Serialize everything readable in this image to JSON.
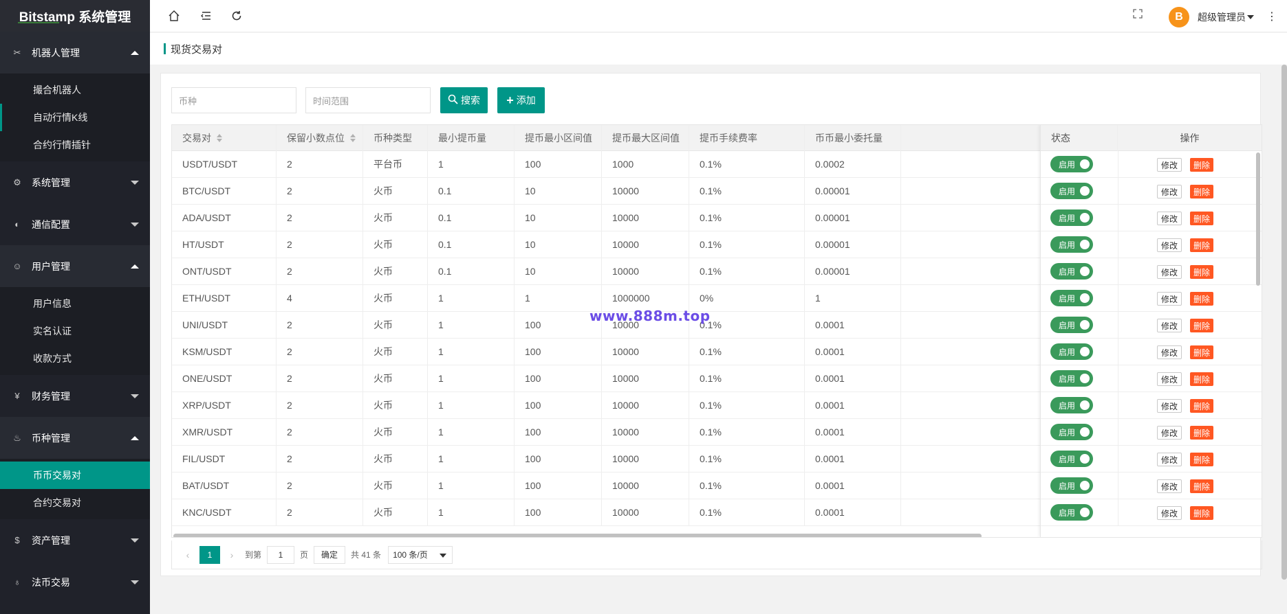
{
  "app": {
    "title": "Bitstamp 系统管理"
  },
  "sidebar": {
    "groups": [
      {
        "label": "机器人管理",
        "icon": "robot-icon",
        "open": true,
        "items": [
          {
            "label": "撮合机器人"
          },
          {
            "label": "自动行情K线"
          },
          {
            "label": "合约行情插针"
          }
        ]
      },
      {
        "label": "系统管理",
        "icon": "gear-icon",
        "open": false,
        "items": []
      },
      {
        "label": "通信配置",
        "icon": "config-icon",
        "open": false,
        "items": []
      },
      {
        "label": "用户管理",
        "icon": "user-icon",
        "open": true,
        "items": [
          {
            "label": "用户信息"
          },
          {
            "label": "实名认证"
          },
          {
            "label": "收款方式"
          }
        ]
      },
      {
        "label": "财务管理",
        "icon": "yen-icon",
        "open": false,
        "items": []
      },
      {
        "label": "币种管理",
        "icon": "coin-icon",
        "open": true,
        "items": [
          {
            "label": "币币交易对"
          },
          {
            "label": "合约交易对"
          }
        ]
      },
      {
        "label": "资产管理",
        "icon": "dollar-icon",
        "open": false,
        "items": []
      },
      {
        "label": "法币交易",
        "icon": "fire-icon",
        "open": false,
        "items": []
      }
    ]
  },
  "topbar": {
    "icons": [
      "home-icon",
      "menu-fold-icon",
      "refresh-icon",
      "fullscreen-icon",
      "more-icon"
    ],
    "user": {
      "name": "超级管理员",
      "avatar": "B"
    }
  },
  "page": {
    "title": "现货交易对"
  },
  "search": {
    "coin_placeholder": "币种",
    "time_placeholder": "时间范围",
    "search_label": "搜索",
    "add_label": "添加"
  },
  "table": {
    "headers": [
      "交易对",
      "保留小数点位",
      "币种类型",
      "最小提币量",
      "提币最小区间值",
      "提币最大区间值",
      "提币手续费率",
      "币币最小委托量",
      "状态",
      "操作"
    ],
    "status_label": "启用",
    "edit_label": "修改",
    "delete_label": "删除",
    "rows": [
      [
        "USDT/USDT",
        "2",
        "平台币",
        "1",
        "100",
        "1000",
        "0.1%",
        "0.0002"
      ],
      [
        "BTC/USDT",
        "2",
        "火币",
        "0.1",
        "10",
        "10000",
        "0.1%",
        "0.00001"
      ],
      [
        "ADA/USDT",
        "2",
        "火币",
        "0.1",
        "10",
        "10000",
        "0.1%",
        "0.00001"
      ],
      [
        "HT/USDT",
        "2",
        "火币",
        "0.1",
        "10",
        "10000",
        "0.1%",
        "0.00001"
      ],
      [
        "ONT/USDT",
        "2",
        "火币",
        "0.1",
        "10",
        "10000",
        "0.1%",
        "0.00001"
      ],
      [
        "ETH/USDT",
        "4",
        "火币",
        "1",
        "1",
        "1000000",
        "0%",
        "1"
      ],
      [
        "UNI/USDT",
        "2",
        "火币",
        "1",
        "100",
        "10000",
        "0.1%",
        "0.0001"
      ],
      [
        "KSM/USDT",
        "2",
        "火币",
        "1",
        "100",
        "10000",
        "0.1%",
        "0.0001"
      ],
      [
        "ONE/USDT",
        "2",
        "火币",
        "1",
        "100",
        "10000",
        "0.1%",
        "0.0001"
      ],
      [
        "XRP/USDT",
        "2",
        "火币",
        "1",
        "100",
        "10000",
        "0.1%",
        "0.0001"
      ],
      [
        "XMR/USDT",
        "2",
        "火币",
        "1",
        "100",
        "10000",
        "0.1%",
        "0.0001"
      ],
      [
        "FIL/USDT",
        "2",
        "火币",
        "1",
        "100",
        "10000",
        "0.1%",
        "0.0001"
      ],
      [
        "BAT/USDT",
        "2",
        "火币",
        "1",
        "100",
        "10000",
        "0.1%",
        "0.0001"
      ],
      [
        "KNC/USDT",
        "2",
        "火币",
        "1",
        "100",
        "10000",
        "0.1%",
        "0.0001"
      ]
    ]
  },
  "pager": {
    "current": "1",
    "goto_label": "到第",
    "goto_value": "1",
    "page_unit": "页",
    "ok_label": "确定",
    "total": "共 41 条",
    "page_size": "100 条/页"
  },
  "watermark": "www.888m.top",
  "colors": {
    "accent": "#009688",
    "sidebar": "#20222a",
    "danger": "#ff5722",
    "toggle_on": "#3a9a5b"
  }
}
